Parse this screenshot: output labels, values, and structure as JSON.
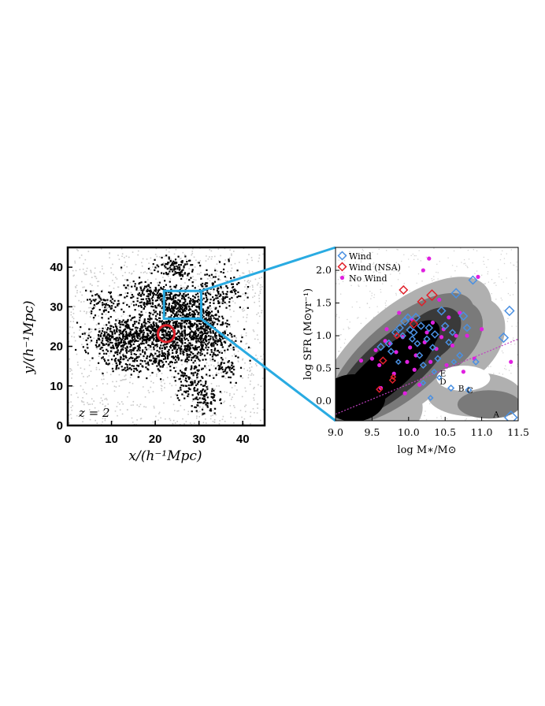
{
  "chart_data": [
    {
      "type": "scatter",
      "panel": "left",
      "xlabel": "x/(h⁻¹Mpc)",
      "ylabel": "y/(h⁻¹Mpc)",
      "xlim": [
        0,
        45
      ],
      "ylim": [
        0,
        45
      ],
      "xticks": [
        0,
        10,
        20,
        30,
        40
      ],
      "yticks": [
        0,
        10,
        20,
        30,
        40
      ],
      "annotation": "z = 2",
      "series": [
        {
          "kind": "clustered points",
          "color": "#000000"
        },
        {
          "kind": "background points",
          "color": "#c8c8c8"
        }
      ],
      "marked_region": {
        "x": [
          22,
          30.5
        ],
        "y": [
          27,
          34
        ],
        "color": "#29abe2"
      },
      "circle": {
        "cx": 22.5,
        "cy": 23.2,
        "r": 1.9,
        "color": "#e0202a"
      }
    },
    {
      "type": "scatter",
      "panel": "right",
      "xlabel": "log M∗/M⊙",
      "ylabel": "log SFR (M⊙yr⁻¹)",
      "xlim": [
        9.0,
        11.5
      ],
      "ylim": [
        -0.3,
        2.35
      ],
      "xticks": [
        "9.0",
        "9.5",
        "10.0",
        "10.5",
        "11.0",
        "11.5"
      ],
      "yticks": [
        "0.0",
        "0.5",
        "1.0",
        "1.5",
        "2.0"
      ],
      "legend": {
        "placement": "top-left",
        "entries": [
          {
            "label": "Wind",
            "marker": "diamond",
            "color": "#4a90e2"
          },
          {
            "label": "Wind (NSA)",
            "marker": "diamond",
            "color": "#e0202a"
          },
          {
            "label": "No Wind",
            "marker": "dot",
            "color": "#e020e0"
          }
        ]
      },
      "labels": [
        {
          "text": "A",
          "x": 11.2,
          "y": -0.2
        },
        {
          "text": "B",
          "x": 10.72,
          "y": 0.2
        },
        {
          "text": "C",
          "x": 10.84,
          "y": 0.17
        },
        {
          "text": "D",
          "x": 10.47,
          "y": 0.3
        },
        {
          "text": "E",
          "x": 10.47,
          "y": 0.43
        }
      ],
      "trend_line": {
        "color": "#c040c0",
        "points": [
          [
            9.0,
            -0.2
          ],
          [
            11.5,
            0.95
          ]
        ]
      },
      "wind": [
        {
          "x": 9.62,
          "y": 0.83,
          "s": 6
        },
        {
          "x": 9.73,
          "y": 0.88,
          "s": 6
        },
        {
          "x": 9.76,
          "y": 0.76,
          "s": 5
        },
        {
          "x": 9.82,
          "y": 1.05,
          "s": 6
        },
        {
          "x": 9.88,
          "y": 1.12,
          "s": 6
        },
        {
          "x": 9.92,
          "y": 1.0,
          "s": 5
        },
        {
          "x": 9.95,
          "y": 1.22,
          "s": 7
        },
        {
          "x": 9.99,
          "y": 1.28,
          "s": 6
        },
        {
          "x": 10.02,
          "y": 1.09,
          "s": 6
        },
        {
          "x": 10.05,
          "y": 0.95,
          "s": 5
        },
        {
          "x": 10.07,
          "y": 1.05,
          "s": 6
        },
        {
          "x": 10.1,
          "y": 1.28,
          "s": 7
        },
        {
          "x": 10.12,
          "y": 0.88,
          "s": 5
        },
        {
          "x": 10.15,
          "y": 0.7,
          "s": 5
        },
        {
          "x": 10.17,
          "y": 1.15,
          "s": 6
        },
        {
          "x": 10.2,
          "y": 0.55,
          "s": 5
        },
        {
          "x": 10.25,
          "y": 0.95,
          "s": 5
        },
        {
          "x": 10.28,
          "y": 1.12,
          "s": 6
        },
        {
          "x": 10.33,
          "y": 0.82,
          "s": 5
        },
        {
          "x": 10.36,
          "y": 1.02,
          "s": 6
        },
        {
          "x": 10.4,
          "y": 0.65,
          "s": 5
        },
        {
          "x": 10.45,
          "y": 1.38,
          "s": 7
        },
        {
          "x": 10.5,
          "y": 1.15,
          "s": 6
        },
        {
          "x": 10.55,
          "y": 0.9,
          "s": 5
        },
        {
          "x": 10.6,
          "y": 1.05,
          "s": 5
        },
        {
          "x": 10.65,
          "y": 1.65,
          "s": 8
        },
        {
          "x": 10.7,
          "y": 0.7,
          "s": 5
        },
        {
          "x": 10.75,
          "y": 1.3,
          "s": 7
        },
        {
          "x": 10.8,
          "y": 1.12,
          "s": 6
        },
        {
          "x": 10.88,
          "y": 1.85,
          "s": 7
        },
        {
          "x": 10.92,
          "y": 0.6,
          "s": 5
        },
        {
          "x": 11.3,
          "y": 0.97,
          "s": 8
        },
        {
          "x": 11.38,
          "y": 1.38,
          "s": 8
        },
        {
          "x": 11.4,
          "y": -0.25,
          "s": 11
        },
        {
          "x": 10.58,
          "y": 0.2,
          "s": 5
        },
        {
          "x": 10.82,
          "y": 0.17,
          "s": 5
        },
        {
          "x": 10.42,
          "y": 0.36,
          "s": 4
        },
        {
          "x": 10.35,
          "y": 0.45,
          "s": 4
        },
        {
          "x": 10.3,
          "y": 0.05,
          "s": 4
        },
        {
          "x": 10.2,
          "y": 0.28,
          "s": 4
        },
        {
          "x": 9.86,
          "y": 0.6,
          "s": 4
        },
        {
          "x": 10.62,
          "y": 0.6,
          "s": 4
        }
      ],
      "wind_nsa": [
        {
          "x": 9.65,
          "y": 0.62,
          "s": 6
        },
        {
          "x": 9.78,
          "y": 0.32,
          "s": 5
        },
        {
          "x": 9.79,
          "y": 0.37,
          "s": 4
        },
        {
          "x": 9.6,
          "y": 0.18,
          "s": 5
        },
        {
          "x": 9.84,
          "y": 1.0,
          "s": 5
        },
        {
          "x": 9.93,
          "y": 1.7,
          "s": 7
        },
        {
          "x": 10.07,
          "y": 1.18,
          "s": 7
        },
        {
          "x": 10.18,
          "y": 1.52,
          "s": 7
        },
        {
          "x": 10.32,
          "y": 1.62,
          "s": 9
        }
      ],
      "no_wind": [
        {
          "x": 9.35,
          "y": 0.62
        },
        {
          "x": 9.5,
          "y": 0.65
        },
        {
          "x": 9.55,
          "y": 0.78
        },
        {
          "x": 9.6,
          "y": 0.55
        },
        {
          "x": 9.62,
          "y": 0.2
        },
        {
          "x": 9.68,
          "y": 0.92
        },
        {
          "x": 9.7,
          "y": 1.1
        },
        {
          "x": 9.75,
          "y": 0.88
        },
        {
          "x": 9.8,
          "y": 0.42
        },
        {
          "x": 9.83,
          "y": 0.75
        },
        {
          "x": 9.87,
          "y": 1.35
        },
        {
          "x": 9.92,
          "y": 0.98
        },
        {
          "x": 9.98,
          "y": 0.6
        },
        {
          "x": 10.02,
          "y": 0.82
        },
        {
          "x": 10.05,
          "y": 1.25
        },
        {
          "x": 10.08,
          "y": 0.48
        },
        {
          "x": 10.1,
          "y": 0.7
        },
        {
          "x": 10.15,
          "y": 0.25
        },
        {
          "x": 10.2,
          "y": 2.0
        },
        {
          "x": 10.22,
          "y": 0.9
        },
        {
          "x": 10.25,
          "y": 1.05
        },
        {
          "x": 10.28,
          "y": 2.18
        },
        {
          "x": 10.3,
          "y": 0.6
        },
        {
          "x": 10.33,
          "y": 1.2
        },
        {
          "x": 10.38,
          "y": 0.8
        },
        {
          "x": 10.42,
          "y": 1.55
        },
        {
          "x": 10.45,
          "y": 0.98
        },
        {
          "x": 10.48,
          "y": 1.1
        },
        {
          "x": 10.52,
          "y": 0.55
        },
        {
          "x": 10.55,
          "y": 1.28
        },
        {
          "x": 10.6,
          "y": 0.85
        },
        {
          "x": 10.65,
          "y": 1.0
        },
        {
          "x": 10.7,
          "y": 1.35
        },
        {
          "x": 10.75,
          "y": 0.45
        },
        {
          "x": 10.8,
          "y": 1.0
        },
        {
          "x": 10.9,
          "y": 0.65
        },
        {
          "x": 10.95,
          "y": 1.9
        },
        {
          "x": 11.0,
          "y": 1.1
        },
        {
          "x": 11.4,
          "y": 0.6
        },
        {
          "x": 9.95,
          "y": 0.12
        }
      ],
      "contour_levels": [
        "#b0b0b0",
        "#7a7a7a",
        "#3a3a3a",
        "#000000"
      ]
    }
  ]
}
